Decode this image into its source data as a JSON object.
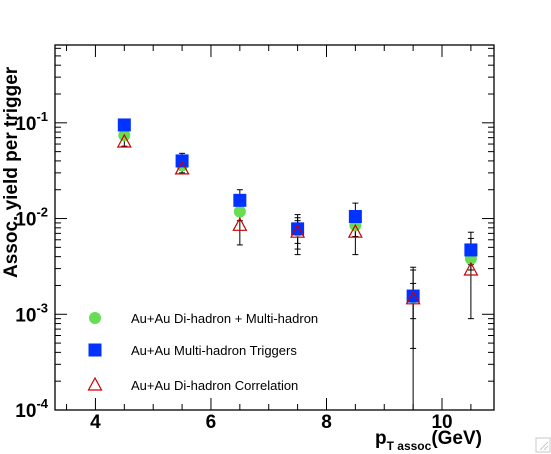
{
  "chart_data": {
    "type": "scatter",
    "title": "",
    "xlabel": "p",
    "xlabel_sub": "T assoc",
    "xlabel_unit": "(GeV)",
    "ylabel": "Assoc. yield per trigger",
    "xlim": [
      3.3,
      10.9
    ],
    "ylim": [
      0.0001,
      0.65
    ],
    "y_scale": "log",
    "grid": false,
    "legend_position": "bottom-left",
    "x_ticks": [
      {
        "value": 4,
        "label": "4"
      },
      {
        "value": 6,
        "label": "6"
      },
      {
        "value": 8,
        "label": "8"
      },
      {
        "value": 10,
        "label": "10"
      }
    ],
    "y_ticks": [
      {
        "value": 0.1,
        "base": "10",
        "exp": "-1"
      },
      {
        "value": 0.01,
        "base": "10",
        "exp": "-2"
      },
      {
        "value": 0.001,
        "base": "10",
        "exp": "-3"
      },
      {
        "value": 0.0001,
        "base": "10",
        "exp": "-4"
      }
    ],
    "series": [
      {
        "name": "Au+Au Di-hadron + Multi-hadron",
        "marker": "circle",
        "color": "#66dd55",
        "points": [
          {
            "x": 4.5,
            "y": 0.074,
            "ylo": 0.067,
            "yhi": 0.081
          },
          {
            "x": 5.5,
            "y": 0.036,
            "ylo": 0.032,
            "yhi": 0.04
          },
          {
            "x": 6.5,
            "y": 0.0118,
            "ylo": 0.0095,
            "yhi": 0.014
          },
          {
            "x": 7.5,
            "y": 0.0075,
            "ylo": 0.0055,
            "yhi": 0.0095
          },
          {
            "x": 8.5,
            "y": 0.0085,
            "ylo": 0.0065,
            "yhi": 0.011
          },
          {
            "x": 9.5,
            "y": 0.0015,
            "ylo": 0.0009,
            "yhi": 0.0021
          },
          {
            "x": 10.5,
            "y": 0.0038,
            "ylo": 0.0029,
            "yhi": 0.0047
          }
        ]
      },
      {
        "name": "Au+Au Multi-hadron Triggers",
        "marker": "square",
        "color": "#0033ff",
        "points": [
          {
            "x": 4.5,
            "y": 0.095,
            "ylo": 0.084,
            "yhi": 0.106
          },
          {
            "x": 5.5,
            "y": 0.04,
            "ylo": 0.034,
            "yhi": 0.048
          },
          {
            "x": 6.5,
            "y": 0.0155,
            "ylo": 0.012,
            "yhi": 0.02
          },
          {
            "x": 7.5,
            "y": 0.0078,
            "ylo": 0.0048,
            "yhi": 0.011
          },
          {
            "x": 8.5,
            "y": 0.0105,
            "ylo": 0.0075,
            "yhi": 0.0145
          },
          {
            "x": 9.5,
            "y": 0.00155,
            "ylo": 0.00044,
            "yhi": 0.0029
          },
          {
            "x": 10.5,
            "y": 0.0047,
            "ylo": 0.0033,
            "yhi": 0.0062
          }
        ]
      },
      {
        "name": "Au+Au Di-hadron Correlation",
        "marker": "triangle-open",
        "color": "#cc0000",
        "points": [
          {
            "x": 4.5,
            "y": 0.063,
            "ylo": 0.057,
            "yhi": 0.069
          },
          {
            "x": 5.5,
            "y": 0.033,
            "ylo": 0.03,
            "yhi": 0.036
          },
          {
            "x": 6.5,
            "y": 0.0085,
            "ylo": 0.0053,
            "yhi": 0.0118
          },
          {
            "x": 7.5,
            "y": 0.0072,
            "ylo": 0.0042,
            "yhi": 0.0102
          },
          {
            "x": 8.5,
            "y": 0.0072,
            "ylo": 0.0042,
            "yhi": 0.0102
          },
          {
            "x": 9.5,
            "y": 0.00145,
            "ylo": 0.0001,
            "yhi": 0.0031
          },
          {
            "x": 10.5,
            "y": 0.0029,
            "ylo": 0.0009,
            "yhi": 0.0072
          }
        ]
      }
    ]
  }
}
